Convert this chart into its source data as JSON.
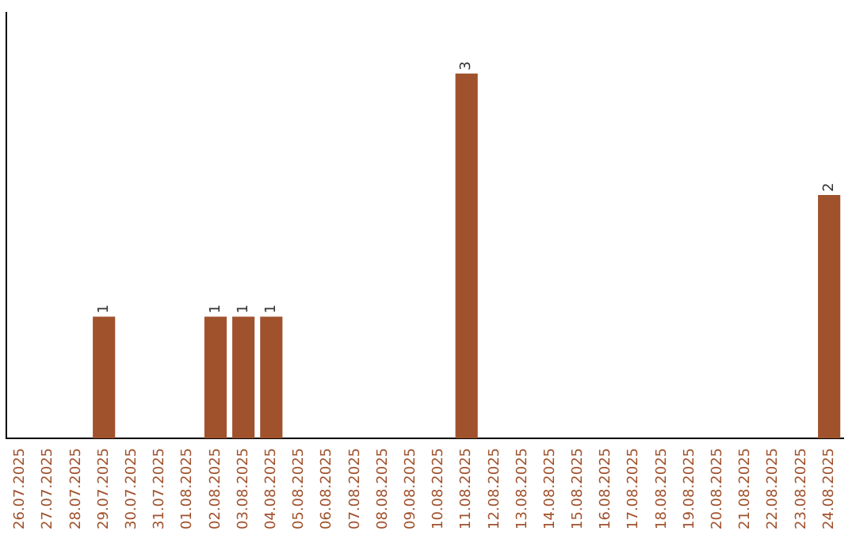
{
  "chart_data": {
    "type": "bar",
    "categories": [
      "26.07.2025",
      "27.07.2025",
      "28.07.2025",
      "29.07.2025",
      "30.07.2025",
      "31.07.2025",
      "01.08.2025",
      "02.08.2025",
      "03.08.2025",
      "04.08.2025",
      "05.08.2025",
      "06.08.2025",
      "07.08.2025",
      "08.08.2025",
      "09.08.2025",
      "10.08.2025",
      "11.08.2025",
      "12.08.2025",
      "13.08.2025",
      "14.08.2025",
      "15.08.2025",
      "16.08.2025",
      "17.08.2025",
      "18.08.2025",
      "19.08.2025",
      "20.08.2025",
      "21.08.2025",
      "22.08.2025",
      "23.08.2025",
      "24.08.2025"
    ],
    "values": [
      0,
      0,
      0,
      1,
      0,
      0,
      0,
      1,
      1,
      1,
      0,
      0,
      0,
      0,
      0,
      0,
      3,
      0,
      0,
      0,
      0,
      0,
      0,
      0,
      0,
      0,
      0,
      0,
      0,
      2
    ],
    "value_labels": [
      null,
      null,
      null,
      "1",
      null,
      null,
      null,
      "1",
      "1",
      "1",
      null,
      null,
      null,
      null,
      null,
      null,
      "3",
      null,
      null,
      null,
      null,
      null,
      null,
      null,
      null,
      null,
      null,
      null,
      null,
      "2"
    ],
    "color": "#a0522d",
    "grid": false,
    "legend": false
  }
}
